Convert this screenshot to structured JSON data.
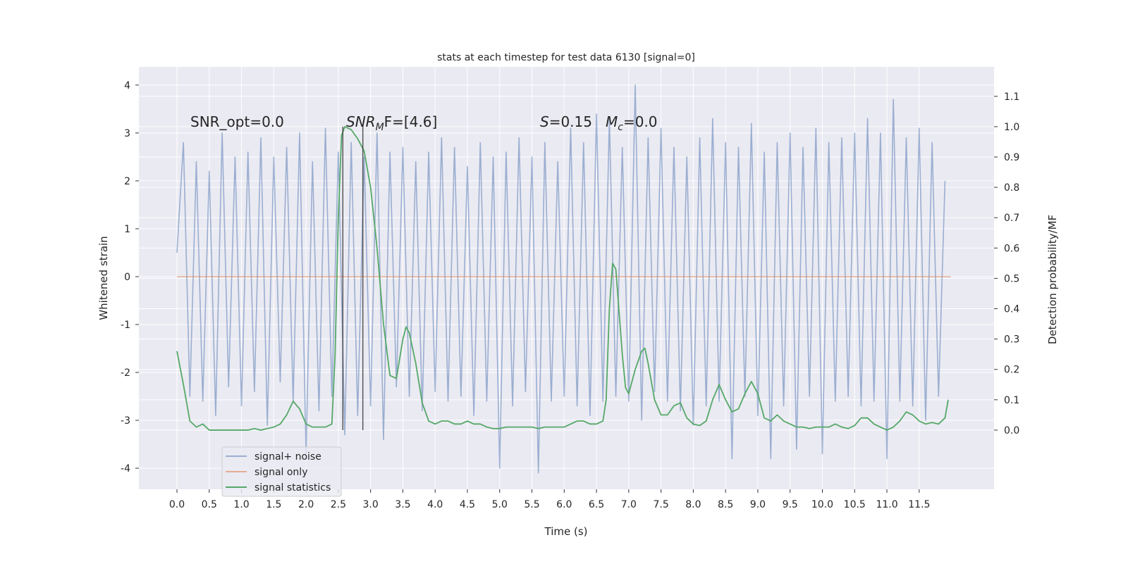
{
  "chart_data": {
    "type": "line",
    "title": "stats at each timestep for test data 6130 [signal=0]",
    "xlabel": "Time (s)",
    "ylabel": "Whitened strain",
    "y2label": "Detection probability/MF",
    "xlim": [
      -0.59,
      12.66
    ],
    "ylim": [
      -4.44,
      4.38
    ],
    "y2lim": [
      -0.195,
      1.197
    ],
    "xticks": [
      {
        "value": 0,
        "label": "0.0"
      },
      0.5,
      {
        "value": 1,
        "label": "1.0"
      },
      1.5,
      {
        "value": 2,
        "label": "2.0"
      },
      2.5,
      {
        "value": 3,
        "label": "3.0"
      },
      3.5,
      {
        "value": 4,
        "label": "4.0"
      },
      4.5,
      {
        "value": 5,
        "label": "5.0"
      },
      5.5,
      {
        "value": 6,
        "label": "6.0"
      },
      6.5,
      {
        "value": 7,
        "label": "7.0"
      },
      7.5,
      {
        "value": 8,
        "label": "8.0"
      },
      8.5,
      {
        "value": 9,
        "label": "9.0"
      },
      9.5,
      {
        "value": 10,
        "label": "10.0"
      },
      10.5,
      {
        "value": 11,
        "label": "11.0"
      },
      11.5
    ],
    "yticks": [
      -4,
      -3,
      -2,
      -1,
      0,
      1,
      2,
      3,
      4
    ],
    "y2ticks": [
      {
        "value": 0,
        "label": "0.0"
      },
      0.1,
      0.2,
      0.3,
      0.4,
      0.5,
      0.6,
      0.7,
      0.8,
      0.9,
      {
        "value": 1,
        "label": "1.0"
      },
      1.1
    ],
    "grid": true,
    "legend_loc": "lower left",
    "series": [
      {
        "name": "signal+ noise",
        "color": "#4c72b0",
        "x": [
          0.0,
          0.1,
          0.2,
          0.3,
          0.4,
          0.5,
          0.6,
          0.7,
          0.8,
          0.9,
          1.0,
          1.1,
          1.2,
          1.3,
          1.4,
          1.5,
          1.6,
          1.7,
          1.8,
          1.9,
          2.0,
          2.1,
          2.2,
          2.3,
          2.4,
          2.5,
          2.6,
          2.7,
          2.8,
          2.9,
          3.0,
          3.1,
          3.2,
          3.3,
          3.4,
          3.5,
          3.6,
          3.7,
          3.8,
          3.9,
          4.0,
          4.1,
          4.2,
          4.3,
          4.4,
          4.5,
          4.6,
          4.7,
          4.8,
          4.9,
          5.0,
          5.1,
          5.2,
          5.3,
          5.4,
          5.5,
          5.6,
          5.7,
          5.8,
          5.9,
          6.0,
          6.1,
          6.2,
          6.3,
          6.4,
          6.5,
          6.6,
          6.7,
          6.8,
          6.9,
          7.0,
          7.1,
          7.2,
          7.3,
          7.4,
          7.5,
          7.6,
          7.7,
          7.8,
          7.9,
          8.0,
          8.1,
          8.2,
          8.3,
          8.4,
          8.5,
          8.6,
          8.7,
          8.8,
          8.9,
          9.0,
          9.1,
          9.2,
          9.3,
          9.4,
          9.5,
          9.6,
          9.7,
          9.8,
          9.9,
          10.0,
          10.1,
          10.2,
          10.3,
          10.4,
          10.5,
          10.6,
          10.7,
          10.8,
          10.9,
          11.0,
          11.1,
          11.2,
          11.3,
          11.4,
          11.5,
          11.6,
          11.7,
          11.8,
          11.9
        ],
        "values": [
          0.5,
          2.8,
          -2.5,
          2.4,
          -2.6,
          2.2,
          -2.9,
          3.0,
          -2.3,
          2.5,
          -2.7,
          2.6,
          -2.4,
          2.9,
          -3.1,
          2.5,
          -2.2,
          2.7,
          -2.6,
          3.0,
          -3.7,
          2.4,
          -2.8,
          3.1,
          -2.5,
          2.6,
          -3.3,
          2.8,
          -2.9,
          2.5,
          -2.7,
          3.0,
          -3.4,
          2.6,
          -2.3,
          2.7,
          -2.5,
          2.4,
          -2.8,
          2.6,
          -2.4,
          2.9,
          -2.6,
          2.7,
          -2.5,
          2.3,
          -2.9,
          2.8,
          -2.6,
          2.5,
          -4.0,
          2.6,
          -2.7,
          2.9,
          -2.4,
          2.5,
          -4.1,
          2.8,
          -2.6,
          2.4,
          -2.5,
          3.1,
          -2.7,
          2.8,
          -2.9,
          3.4,
          -2.6,
          3.3,
          -2.5,
          2.7,
          -2.6,
          4.0,
          -3.0,
          2.9,
          -2.4,
          3.1,
          -2.6,
          2.7,
          -2.8,
          2.5,
          -3.1,
          2.9,
          -2.7,
          3.3,
          -2.6,
          2.8,
          -3.8,
          2.7,
          -2.5,
          3.2,
          -2.9,
          2.6,
          -3.8,
          2.8,
          -2.7,
          3.0,
          -3.6,
          2.7,
          -2.5,
          3.1,
          -3.7,
          2.8,
          -2.6,
          2.9,
          -2.5,
          3.0,
          -2.7,
          3.3,
          -2.6,
          3.0,
          -3.8,
          3.7,
          -2.6,
          2.9,
          -2.7,
          3.1,
          -3.0,
          2.8,
          -2.5,
          2.0
        ]
      },
      {
        "name": "signal only",
        "color": "#dd8452",
        "x": [
          0.0,
          11.99
        ],
        "values": [
          0,
          0
        ]
      },
      {
        "name": "signal statistics",
        "color": "#55a868",
        "axis": "y2",
        "x": [
          0.0,
          0.1,
          0.2,
          0.3,
          0.4,
          0.5,
          0.6,
          0.7,
          0.8,
          0.9,
          1.0,
          1.1,
          1.2,
          1.3,
          1.4,
          1.5,
          1.6,
          1.7,
          1.8,
          1.9,
          2.0,
          2.1,
          2.2,
          2.3,
          2.4,
          2.45,
          2.5,
          2.55,
          2.6,
          2.7,
          2.8,
          2.9,
          3.0,
          3.1,
          3.2,
          3.3,
          3.4,
          3.5,
          3.55,
          3.6,
          3.7,
          3.8,
          3.9,
          4.0,
          4.1,
          4.2,
          4.3,
          4.4,
          4.5,
          4.6,
          4.7,
          4.8,
          4.9,
          5.0,
          5.1,
          5.2,
          5.3,
          5.4,
          5.5,
          5.6,
          5.7,
          5.8,
          5.9,
          6.0,
          6.1,
          6.2,
          6.3,
          6.4,
          6.5,
          6.6,
          6.65,
          6.7,
          6.75,
          6.8,
          6.9,
          6.95,
          7.0,
          7.1,
          7.2,
          7.25,
          7.3,
          7.4,
          7.5,
          7.6,
          7.7,
          7.8,
          7.9,
          8.0,
          8.1,
          8.2,
          8.3,
          8.4,
          8.5,
          8.6,
          8.7,
          8.8,
          8.9,
          9.0,
          9.1,
          9.2,
          9.3,
          9.4,
          9.5,
          9.6,
          9.7,
          9.8,
          9.9,
          10.0,
          10.1,
          10.2,
          10.3,
          10.4,
          10.5,
          10.6,
          10.7,
          10.8,
          10.9,
          11.0,
          11.1,
          11.2,
          11.3,
          11.4,
          11.5,
          11.6,
          11.7,
          11.8,
          11.9,
          11.95
        ],
        "values": [
          0.26,
          0.15,
          0.03,
          0.01,
          0.02,
          0.0,
          0.0,
          0.0,
          0.0,
          0.0,
          0.0,
          0.0,
          0.005,
          0.0,
          0.005,
          0.01,
          0.02,
          0.05,
          0.095,
          0.07,
          0.02,
          0.01,
          0.01,
          0.01,
          0.02,
          0.25,
          0.7,
          0.97,
          1.0,
          0.99,
          0.96,
          0.92,
          0.8,
          0.6,
          0.35,
          0.18,
          0.17,
          0.3,
          0.34,
          0.32,
          0.22,
          0.09,
          0.03,
          0.02,
          0.03,
          0.03,
          0.02,
          0.02,
          0.03,
          0.02,
          0.02,
          0.01,
          0.005,
          0.005,
          0.01,
          0.01,
          0.01,
          0.01,
          0.01,
          0.005,
          0.01,
          0.01,
          0.01,
          0.01,
          0.02,
          0.03,
          0.03,
          0.02,
          0.02,
          0.03,
          0.1,
          0.4,
          0.55,
          0.53,
          0.25,
          0.14,
          0.12,
          0.2,
          0.26,
          0.27,
          0.22,
          0.1,
          0.05,
          0.05,
          0.08,
          0.09,
          0.04,
          0.02,
          0.015,
          0.03,
          0.1,
          0.15,
          0.1,
          0.06,
          0.07,
          0.12,
          0.16,
          0.12,
          0.04,
          0.03,
          0.05,
          0.03,
          0.02,
          0.01,
          0.01,
          0.005,
          0.01,
          0.01,
          0.01,
          0.02,
          0.01,
          0.005,
          0.015,
          0.04,
          0.04,
          0.02,
          0.01,
          0.0,
          0.01,
          0.03,
          0.06,
          0.05,
          0.03,
          0.02,
          0.025,
          0.02,
          0.04,
          0.1
        ]
      }
    ],
    "vlines": {
      "x": [
        2.57,
        2.88
      ],
      "ymin": 0,
      "ymax": 1,
      "color": "#333333"
    },
    "annotations": [
      [
        {
          "text": "SNR_opt=0.0"
        }
      ],
      [
        {
          "text": "SNR",
          "italic": true
        },
        {
          "text": "M",
          "italic": true,
          "sub": true
        },
        {
          "text": "F=[4.6]"
        }
      ],
      [
        {
          "text": "S",
          "italic": true
        },
        {
          "text": "=0.15"
        }
      ],
      [
        {
          "text": "M",
          "italic": true
        },
        {
          "text": "c",
          "italic": true,
          "sub": true
        },
        {
          "text": "=0.0"
        }
      ]
    ]
  }
}
